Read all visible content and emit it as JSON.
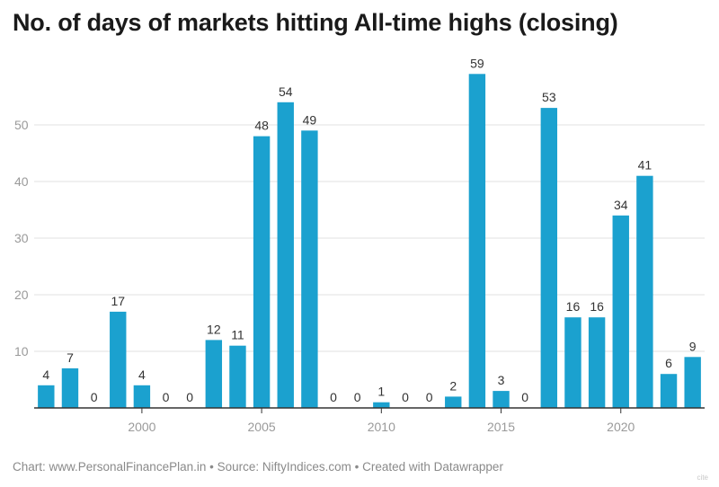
{
  "title": "No. of days of markets hitting All-time highs (closing)",
  "footer": "Chart: www.PersonalFinancePlan.in • Source: NiftyIndices.com • Created with Datawrapper",
  "watermark": "cite",
  "colors": {
    "bar": "#1ba1cf",
    "grid": "#e2e2e2",
    "axis": "#333333",
    "tick_text": "#9a9a9a",
    "label_text": "#333333"
  },
  "chart_data": {
    "type": "bar",
    "title": "No. of days of markets hitting All-time highs (closing)",
    "xlabel": "",
    "ylabel": "",
    "categories": [
      1996,
      1997,
      1998,
      1999,
      2000,
      2001,
      2002,
      2003,
      2004,
      2005,
      2006,
      2007,
      2008,
      2009,
      2010,
      2011,
      2012,
      2013,
      2014,
      2015,
      2016,
      2017,
      2018,
      2019,
      2020,
      2021,
      2022,
      2023
    ],
    "values": [
      4,
      7,
      0,
      17,
      4,
      0,
      0,
      12,
      11,
      48,
      54,
      49,
      0,
      0,
      1,
      0,
      0,
      2,
      59,
      3,
      0,
      53,
      16,
      16,
      34,
      41,
      6,
      9
    ],
    "x_ticks": [
      "2000",
      "2005",
      "2010",
      "2015",
      "2020"
    ],
    "x_tick_values": [
      2000,
      2005,
      2010,
      2015,
      2020
    ],
    "y_ticks": [
      "10",
      "20",
      "30",
      "40",
      "50"
    ],
    "y_tick_values": [
      10,
      20,
      30,
      40,
      50
    ],
    "ylim": [
      0,
      60
    ],
    "grid": true,
    "data_labels": true
  }
}
